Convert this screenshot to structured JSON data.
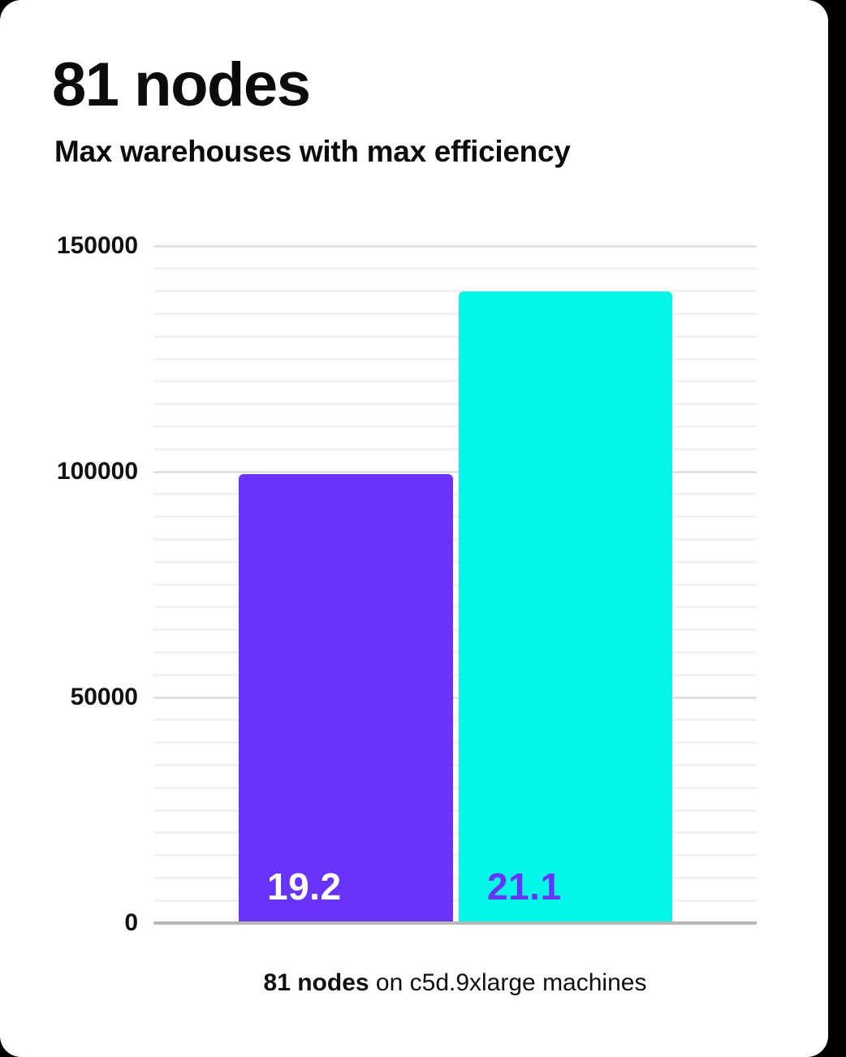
{
  "header": {
    "title": "81 nodes",
    "subtitle": "Max warehouses with max efficiency"
  },
  "caption": {
    "bold": "81 nodes",
    "rest": " on c5d.9xlarge machines"
  },
  "colors": {
    "page_background": "#000000",
    "card_background": "#ffffff",
    "text": "#0b0b0b",
    "baseline": "#b9b9b9",
    "major_gridline": "#e2e2e2",
    "minor_gridline": "#f2f2f2"
  },
  "chart_data": {
    "type": "bar",
    "title": "81 nodes",
    "subtitle": "Max warehouses with max efficiency",
    "caption": "81 nodes on c5d.9xlarge machines",
    "categories": [
      "19.2",
      "21.1"
    ],
    "values": [
      99500,
      140000
    ],
    "bar_colors": [
      "#6834fc",
      "#02f7e8"
    ],
    "bar_label_colors": [
      "#ffffff",
      "#6834fc"
    ],
    "xlabel": "",
    "ylabel": "",
    "ylim": [
      0,
      150000
    ],
    "yticks": [
      0,
      50000,
      100000,
      150000
    ],
    "minor_gridline_step": 5000,
    "grid": "horizontal",
    "legend": "none",
    "bar_value_labels_inside": true
  }
}
